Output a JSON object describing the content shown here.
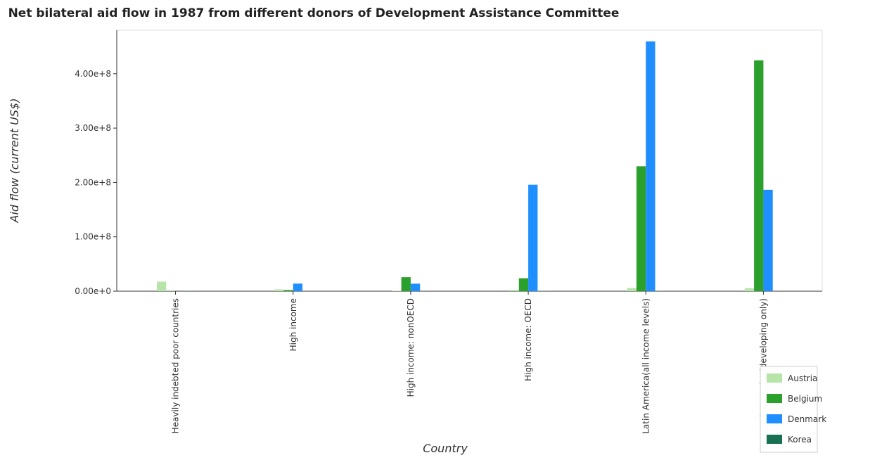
{
  "chart_data": {
    "type": "bar",
    "title": "Net bilateral aid flow in 1987 from different donors of Development Assistance Committee",
    "xlabel": "Country",
    "ylabel": "Aid flow (current US$)",
    "ylim": [
      0,
      480000000
    ],
    "yticks": [
      0,
      100000000,
      200000000,
      300000000,
      400000000
    ],
    "ytick_labels": [
      "0.00e+0",
      "1.00e+8",
      "2.00e+8",
      "3.00e+8",
      "4.00e+8"
    ],
    "categories": [
      "Heavily indebted poor countries",
      "High income",
      "High income: nonOECD",
      "High income: OECD",
      "Latin America(all income levels)",
      "Latin America(developing only)"
    ],
    "series": [
      {
        "name": "Austria",
        "color": "#b7e4a8",
        "values": [
          17500000,
          3300000,
          800000,
          2500000,
          5800000,
          5500000
        ]
      },
      {
        "name": "Belgium",
        "color": "#2ca02c",
        "values": [
          500000,
          2200000,
          25700000,
          23800000,
          229800000,
          424700000
        ]
      },
      {
        "name": "Denmark",
        "color": "#1f8fff",
        "values": [
          0,
          14000000,
          13800000,
          195800000,
          459500000,
          186500000
        ]
      },
      {
        "name": "Korea",
        "color": "#1a7052",
        "values": [
          400000,
          100000,
          100000,
          600000,
          300000,
          0
        ]
      }
    ],
    "legend_position": "bottom-right",
    "grid": false
  }
}
